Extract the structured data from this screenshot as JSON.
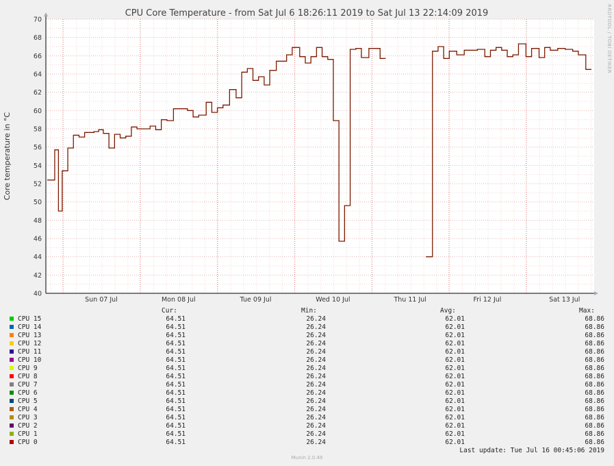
{
  "chart_data": {
    "type": "line",
    "title": "CPU Core Temperature - from Sat Jul  6 18:26:11 2019 to Sat Jul 13 22:14:09 2019",
    "ylabel": "Core temperature in °C",
    "ylim": [
      40,
      70
    ],
    "yticks": [
      "40",
      "42",
      "44",
      "46",
      "48",
      "50",
      "52",
      "54",
      "56",
      "58",
      "60",
      "62",
      "64",
      "66",
      "68",
      "70"
    ],
    "xticks": [
      "Sun 07 Jul",
      "Mon 08 Jul",
      "Tue 09 Jul",
      "Wed 10 Jul",
      "Thu 11 Jul",
      "Fri 12 Jul",
      "Sat 13 Jul"
    ],
    "series_color": "#7a1a00",
    "series": [
      {
        "steps": [
          [
            0,
            52.4
          ],
          [
            0.08,
            55.7
          ],
          [
            0.12,
            49.0
          ],
          [
            0.16,
            53.4
          ],
          [
            0.22,
            55.9
          ],
          [
            0.28,
            57.3
          ],
          [
            0.34,
            57.1
          ],
          [
            0.4,
            57.6
          ],
          [
            0.5,
            57.7
          ],
          [
            0.55,
            57.9
          ],
          [
            0.6,
            57.5
          ],
          [
            0.66,
            55.9
          ],
          [
            0.72,
            57.4
          ],
          [
            0.78,
            57.0
          ],
          [
            0.84,
            57.2
          ],
          [
            0.9,
            58.2
          ],
          [
            0.96,
            58.0
          ],
          [
            1.1,
            58.3
          ],
          [
            1.16,
            57.9
          ],
          [
            1.22,
            59.0
          ],
          [
            1.28,
            58.9
          ],
          [
            1.35,
            60.2
          ],
          [
            1.5,
            60.0
          ],
          [
            1.56,
            59.3
          ],
          [
            1.62,
            59.5
          ],
          [
            1.7,
            60.9
          ],
          [
            1.76,
            59.8
          ],
          [
            1.82,
            60.3
          ],
          [
            1.88,
            60.6
          ],
          [
            1.95,
            62.3
          ],
          [
            2.02,
            61.4
          ],
          [
            2.08,
            64.2
          ],
          [
            2.14,
            64.6
          ],
          [
            2.2,
            63.3
          ],
          [
            2.26,
            63.7
          ],
          [
            2.32,
            62.8
          ],
          [
            2.38,
            64.4
          ],
          [
            2.45,
            65.4
          ],
          [
            2.56,
            66.1
          ],
          [
            2.62,
            66.9
          ],
          [
            2.7,
            65.9
          ],
          [
            2.76,
            65.2
          ],
          [
            2.82,
            65.9
          ],
          [
            2.88,
            66.9
          ],
          [
            2.94,
            65.9
          ],
          [
            3.0,
            65.6
          ],
          [
            3.06,
            58.9
          ],
          [
            3.12,
            45.7
          ],
          [
            3.18,
            49.6
          ],
          [
            3.24,
            66.7
          ],
          [
            3.3,
            66.8
          ],
          [
            3.36,
            65.8
          ],
          [
            3.44,
            66.8
          ],
          [
            3.56,
            65.7
          ]
        ]
      },
      {
        "steps": [
          [
            4.05,
            44.0
          ],
          [
            4.12,
            66.5
          ],
          [
            4.18,
            67.0
          ],
          [
            4.24,
            65.7
          ],
          [
            4.3,
            66.5
          ],
          [
            4.38,
            66.1
          ],
          [
            4.46,
            66.6
          ],
          [
            4.6,
            66.7
          ],
          [
            4.68,
            65.9
          ],
          [
            4.74,
            66.6
          ],
          [
            4.8,
            66.9
          ],
          [
            4.86,
            66.6
          ],
          [
            4.92,
            65.9
          ],
          [
            4.98,
            66.1
          ],
          [
            5.04,
            67.3
          ],
          [
            5.12,
            65.9
          ],
          [
            5.18,
            66.8
          ],
          [
            5.26,
            65.8
          ],
          [
            5.32,
            66.9
          ],
          [
            5.38,
            66.6
          ],
          [
            5.46,
            66.8
          ],
          [
            5.54,
            66.7
          ],
          [
            5.62,
            66.5
          ],
          [
            5.68,
            66.1
          ],
          [
            5.76,
            64.5
          ]
        ]
      }
    ],
    "xmax": 5.82
  },
  "legend": {
    "headers": {
      "cur": "Cur:",
      "min": "Min:",
      "avg": "Avg:",
      "max": "Max:"
    },
    "rows": [
      {
        "name": "CPU 15",
        "color": "#00cc00",
        "cur": "64.51",
        "min": "26.24",
        "avg": "62.01",
        "max": "68.86"
      },
      {
        "name": "CPU 14",
        "color": "#0066b3",
        "cur": "64.51",
        "min": "26.24",
        "avg": "62.01",
        "max": "68.86"
      },
      {
        "name": "CPU 13",
        "color": "#ff8000",
        "cur": "64.51",
        "min": "26.24",
        "avg": "62.01",
        "max": "68.86"
      },
      {
        "name": "CPU 12",
        "color": "#ffcc00",
        "cur": "64.51",
        "min": "26.24",
        "avg": "62.01",
        "max": "68.86"
      },
      {
        "name": "CPU 11",
        "color": "#330099",
        "cur": "64.51",
        "min": "26.24",
        "avg": "62.01",
        "max": "68.86"
      },
      {
        "name": "CPU 10",
        "color": "#990099",
        "cur": "64.51",
        "min": "26.24",
        "avg": "62.01",
        "max": "68.86"
      },
      {
        "name": "CPU 9",
        "color": "#ccff00",
        "cur": "64.51",
        "min": "26.24",
        "avg": "62.01",
        "max": "68.86"
      },
      {
        "name": "CPU 8",
        "color": "#ff0000",
        "cur": "64.51",
        "min": "26.24",
        "avg": "62.01",
        "max": "68.86"
      },
      {
        "name": "CPU 7",
        "color": "#808080",
        "cur": "64.51",
        "min": "26.24",
        "avg": "62.01",
        "max": "68.86"
      },
      {
        "name": "CPU 6",
        "color": "#008f00",
        "cur": "64.51",
        "min": "26.24",
        "avg": "62.01",
        "max": "68.86"
      },
      {
        "name": "CPU 5",
        "color": "#00487d",
        "cur": "64.51",
        "min": "26.24",
        "avg": "62.01",
        "max": "68.86"
      },
      {
        "name": "CPU 4",
        "color": "#b35a00",
        "cur": "64.51",
        "min": "26.24",
        "avg": "62.01",
        "max": "68.86"
      },
      {
        "name": "CPU 3",
        "color": "#b38f00",
        "cur": "64.51",
        "min": "26.24",
        "avg": "62.01",
        "max": "68.86"
      },
      {
        "name": "CPU 2",
        "color": "#6b006b",
        "cur": "64.51",
        "min": "26.24",
        "avg": "62.01",
        "max": "68.86"
      },
      {
        "name": "CPU 1",
        "color": "#8fb300",
        "cur": "64.51",
        "min": "26.24",
        "avg": "62.01",
        "max": "68.86"
      },
      {
        "name": "CPU 0",
        "color": "#b30000",
        "cur": "64.51",
        "min": "26.24",
        "avg": "62.01",
        "max": "68.86"
      }
    ]
  },
  "last_update": "Last update: Tue Jul 16 00:45:06 2019",
  "side_label": "RRDTOOL / TOBI OETIKER",
  "footer": "Munin 2.0.49"
}
